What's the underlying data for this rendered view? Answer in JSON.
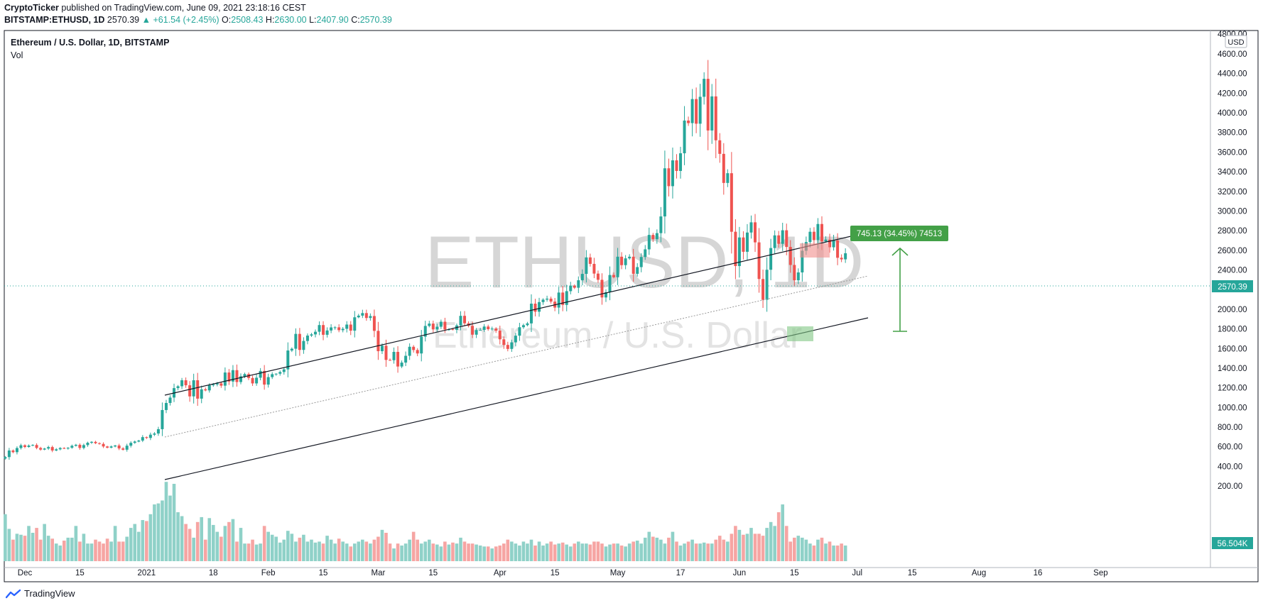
{
  "header": {
    "publisher": "CryptoTicker",
    "published_text": "published on TradingView.com, June 09, 2021 23:18:16 CEST",
    "symbol_line": "BITSTAMP:ETHUSD, 1D",
    "last": "2570.39",
    "change": "▲ +61.54 (+2.45%)",
    "o_label": "O:",
    "o": "2508.43",
    "h_label": "H:",
    "h": "2630.00",
    "l_label": "L:",
    "l": "2407.90",
    "c_label": "C:",
    "c": "2570.39"
  },
  "legend": {
    "title": "Ethereum / U.S. Dollar, 1D, BITSTAMP",
    "vol": "Vol"
  },
  "watermark": {
    "symbol": "ETHUSD, 1D",
    "name": "Ethereum / U.S. Dollar"
  },
  "colors": {
    "up": "#26a69a",
    "down": "#ef5350",
    "vol_up": "#8fd1c8",
    "vol_down": "#f6a5a3",
    "measure": "#43a047",
    "price_line": "#26a69a"
  },
  "price_scale": {
    "currency": "USD",
    "last_label": "2570.39",
    "vol_label": "56.504K"
  },
  "measure_label": "745.13 (34.45%) 74513",
  "footer": {
    "brand": "TradingView"
  },
  "chart_data": {
    "type": "candlestick",
    "y_ticks": [
      200,
      400,
      600,
      800,
      1000,
      1200,
      1400,
      1600,
      1800,
      2000,
      2200,
      2400,
      2600,
      2800,
      3000,
      3200,
      3400,
      3600,
      3800,
      4000,
      4200,
      4400,
      4600,
      4800
    ],
    "y_tick_labels": [
      "200.00",
      "400.00",
      "600.00",
      "800.00",
      "1000.00",
      "1200.00",
      "1400.00",
      "1600.00",
      "1800.00",
      "2000.00",
      "2200.00",
      "2400.00",
      "2600.00",
      "2800.00",
      "3000.00",
      "3200.00",
      "3400.00",
      "3600.00",
      "3800.00",
      "4000.00",
      "4200.00",
      "4400.00",
      "4600.00",
      "4800.00"
    ],
    "x_ticks": [
      "Dec",
      "15",
      "2021",
      "18",
      "Feb",
      "15",
      "Mar",
      "15",
      "Apr",
      "15",
      "May",
      "17",
      "Jun",
      "15",
      "Jul",
      "15",
      "Aug",
      "16",
      "Sep"
    ],
    "x_tick_days": [
      0,
      14,
      31,
      48,
      62,
      76,
      90,
      104,
      121,
      135,
      151,
      167,
      182,
      196,
      212,
      226,
      243,
      258,
      274
    ],
    "first_candle_day": -5,
    "closes": [
      495,
      562,
      545,
      587,
      615,
      598,
      612,
      618,
      588,
      571,
      582,
      597,
      562,
      574,
      587,
      582,
      590,
      610,
      620,
      588,
      617,
      641,
      650,
      636,
      629,
      603,
      591,
      603,
      613,
      583,
      570,
      611,
      640,
      653,
      663,
      698,
      690,
      723,
      735,
      779,
      974,
      1046,
      1101,
      1197,
      1216,
      1277,
      1226,
      1113,
      1277,
      1090,
      1185,
      1174,
      1226,
      1234,
      1245,
      1222,
      1356,
      1264,
      1380,
      1259,
      1317,
      1340,
      1300,
      1245,
      1303,
      1372,
      1233,
      1309,
      1339,
      1344,
      1361,
      1388,
      1580,
      1598,
      1749,
      1586,
      1677,
      1732,
      1744,
      1771,
      1839,
      1740,
      1784,
      1815,
      1816,
      1787,
      1801,
      1844,
      1782,
      1918,
      1935,
      1961,
      1911,
      1931,
      1780,
      1573,
      1629,
      1484,
      1481,
      1566,
      1417,
      1457,
      1526,
      1618,
      1585,
      1550,
      1721,
      1830,
      1854,
      1795,
      1822,
      1873,
      1794,
      1796,
      1790,
      1835,
      1933,
      1857,
      1831,
      1741,
      1788,
      1790,
      1824,
      1797,
      1803,
      1782,
      1694,
      1637,
      1596,
      1663,
      1731,
      1817,
      1838,
      1856,
      2057,
      1975,
      2073,
      2098,
      2108,
      2078,
      2017,
      2170,
      2044,
      2184,
      2241,
      2219,
      2295,
      2360,
      2528,
      2462,
      2363,
      2300,
      2120,
      2173,
      2349,
      2326,
      2535,
      2449,
      2518,
      2535,
      2361,
      2429,
      2532,
      2610,
      2757,
      2713,
      2775,
      2945,
      3435,
      3253,
      3516,
      3408,
      3588,
      3921,
      3895,
      4140,
      3889,
      4163,
      4346,
      3820,
      4167,
      3720,
      3582,
      3286,
      3385,
      2789,
      2440,
      2731,
      2585,
      2781,
      2885,
      2681,
      2308,
      2096,
      2402,
      2623,
      2752,
      2666,
      2804,
      2634,
      2451,
      2295,
      2375,
      2596,
      2684,
      2789,
      2704,
      2868,
      2690,
      2709,
      2631,
      2701,
      2524,
      2508,
      2570
    ],
    "volumes": [
      680,
      530,
      420,
      480,
      470,
      460,
      560,
      490,
      540,
      420,
      580,
      460,
      430,
      380,
      360,
      410,
      440,
      440,
      560,
      400,
      480,
      380,
      380,
      420,
      400,
      380,
      430,
      400,
      560,
      400,
      400,
      450,
      540,
      580,
      500,
      620,
      610,
      680,
      780,
      790,
      820,
      1010,
      870,
      990,
      700,
      660,
      580,
      530,
      440,
      600,
      650,
      420,
      640,
      570,
      500,
      450,
      560,
      600,
      630,
      400,
      540,
      380,
      380,
      420,
      370,
      380,
      560,
      500,
      470,
      450,
      390,
      420,
      510,
      480,
      400,
      440,
      470,
      400,
      420,
      390,
      400,
      380,
      460,
      420,
      380,
      430,
      400,
      380,
      350,
      380,
      400,
      420,
      400,
      380,
      420,
      450,
      520,
      490,
      380,
      330,
      380,
      360,
      380,
      420,
      500,
      420,
      380,
      400,
      420,
      380,
      370,
      350,
      400,
      370,
      390,
      380,
      440,
      400,
      380,
      380,
      370,
      360,
      350,
      350,
      330,
      350,
      360,
      380,
      420,
      400,
      380,
      360,
      400,
      380,
      420,
      360,
      400,
      360,
      380,
      400,
      370,
      380,
      390,
      370,
      350,
      380,
      400,
      380,
      380,
      370,
      400,
      400,
      380,
      350,
      370,
      380,
      380,
      360,
      350,
      380,
      400,
      410,
      380,
      440,
      500,
      450,
      440,
      420,
      380,
      440,
      500,
      400,
      360,
      380,
      400,
      420,
      380,
      380,
      390,
      380,
      380,
      420,
      460,
      420,
      400,
      480,
      560,
      520,
      470,
      480,
      540,
      480,
      480,
      460,
      540,
      600,
      560,
      700,
      780,
      560,
      400,
      440,
      460,
      440,
      420,
      380,
      360,
      420,
      440,
      380,
      400,
      360,
      360,
      380,
      360,
      380,
      380,
      360,
      400,
      380,
      300,
      300,
      360,
      330
    ],
    "last_close": 2570.39,
    "last_volume": "56.504K"
  }
}
